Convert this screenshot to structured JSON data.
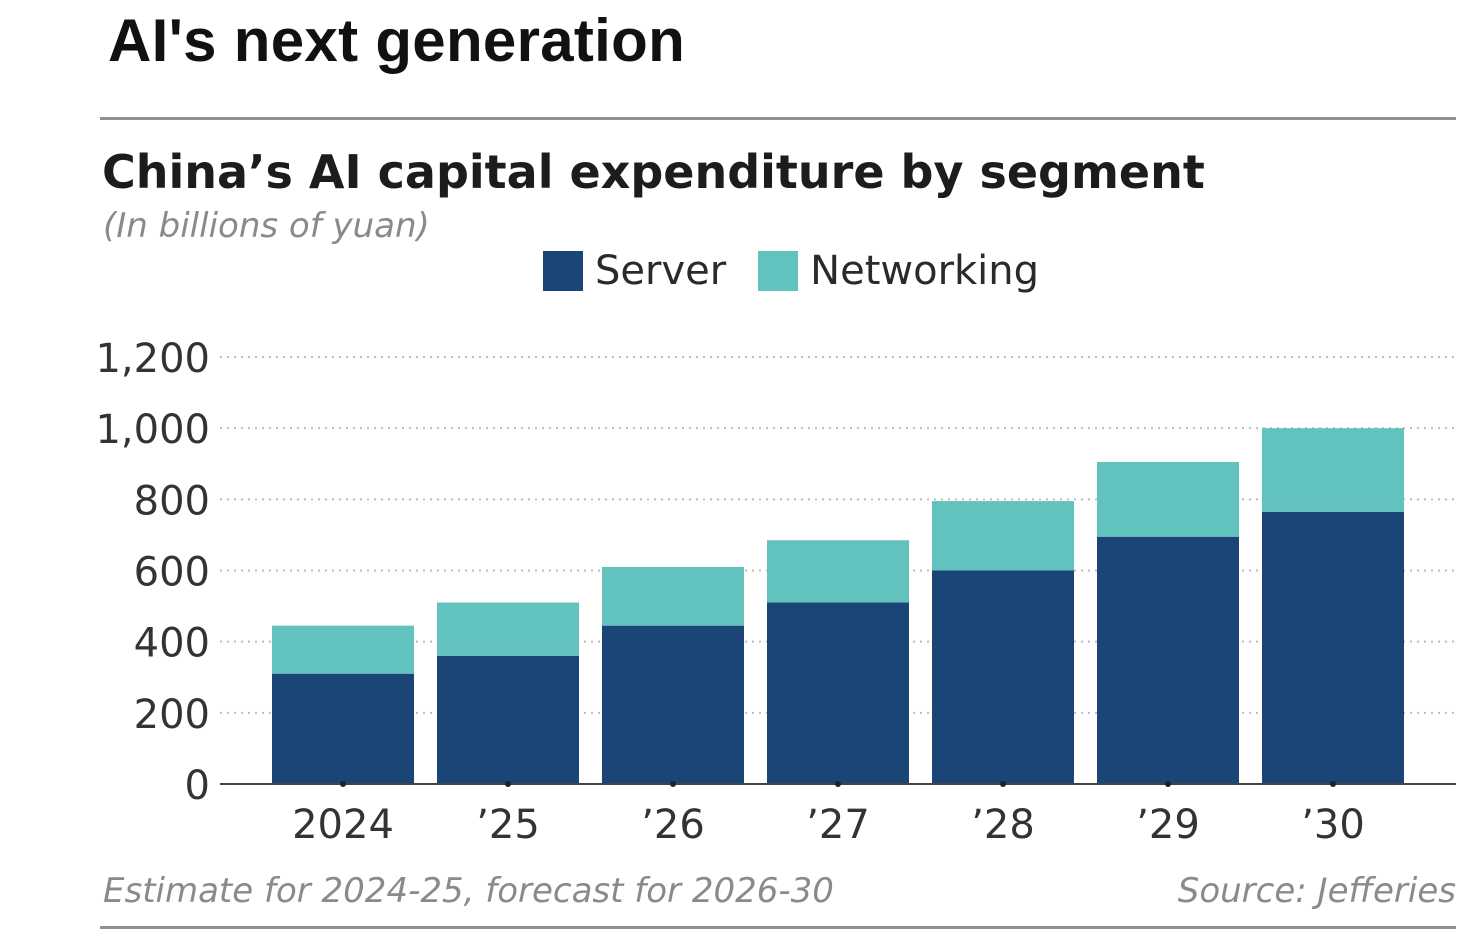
{
  "header": {
    "title": "AI's next generation"
  },
  "chart_data": {
    "type": "bar",
    "stacked": true,
    "title": "China’s AI capital expenditure by segment",
    "subtitle": "(In billions of yuan)",
    "categories": [
      "2024",
      "’25",
      "’26",
      "’27",
      "’28",
      "’29",
      "’30"
    ],
    "series": [
      {
        "name": "Server",
        "color": "#1b4577",
        "values": [
          310,
          360,
          445,
          510,
          600,
          695,
          765
        ]
      },
      {
        "name": "Networking",
        "color": "#62c2bd",
        "values": [
          135,
          150,
          165,
          175,
          195,
          210,
          235
        ]
      }
    ],
    "ylim": [
      0,
      1200
    ],
    "yticks": [
      0,
      200,
      400,
      600,
      800,
      1000,
      1200
    ],
    "ytick_labels": [
      "0",
      "200",
      "400",
      "600",
      "800",
      "1,000",
      "1,200"
    ],
    "grid": true,
    "legend_position": "top-center"
  },
  "footer": {
    "note": "Estimate for 2024-25, forecast for 2026-30",
    "source": "Source: Jefferies"
  }
}
